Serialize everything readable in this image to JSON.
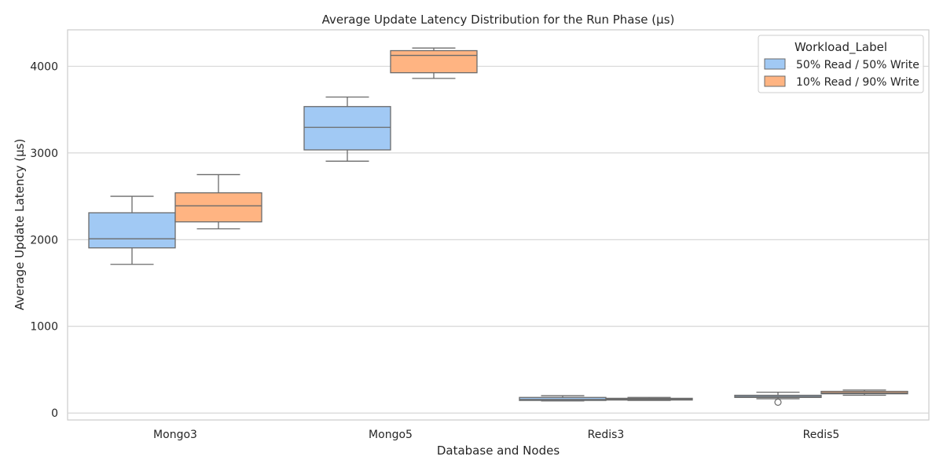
{
  "chart_data": {
    "type": "box",
    "title": "Average Update Latency Distribution for the Run Phase (µs)",
    "xlabel": "Database and Nodes",
    "ylabel": "Average Update Latency (µs)",
    "categories": [
      "Mongo3",
      "Mongo5",
      "Redis3",
      "Redis5"
    ],
    "ylim": [
      -80,
      4420
    ],
    "yticks": [
      0,
      1000,
      2000,
      3000,
      4000
    ],
    "grid": true,
    "legend": {
      "title": "Workload_Label",
      "placement": "top-right"
    },
    "series": [
      {
        "name": "50% Read / 50% Write",
        "color": "#a1c9f4",
        "boxes": [
          {
            "category": "Mongo3",
            "whisker_low": 1715,
            "q1": 1905,
            "median": 2010,
            "q3": 2310,
            "whisker_high": 2500,
            "outliers": []
          },
          {
            "category": "Mongo5",
            "whisker_low": 2905,
            "q1": 3035,
            "median": 3295,
            "q3": 3535,
            "whisker_high": 3645,
            "outliers": []
          },
          {
            "category": "Redis3",
            "whisker_low": 140,
            "q1": 145,
            "median": 158,
            "q3": 180,
            "whisker_high": 200,
            "outliers": []
          },
          {
            "category": "Redis5",
            "whisker_low": 165,
            "q1": 180,
            "median": 190,
            "q3": 205,
            "whisker_high": 240,
            "outliers": [
              125
            ]
          }
        ]
      },
      {
        "name": "10% Read / 90% Write",
        "color": "#ffb482",
        "boxes": [
          {
            "category": "Mongo3",
            "whisker_low": 2125,
            "q1": 2205,
            "median": 2390,
            "q3": 2540,
            "whisker_high": 2750,
            "outliers": []
          },
          {
            "category": "Mongo5",
            "whisker_low": 3860,
            "q1": 3925,
            "median": 4125,
            "q3": 4180,
            "whisker_high": 4210,
            "outliers": []
          },
          {
            "category": "Redis3",
            "whisker_low": 145,
            "q1": 150,
            "median": 160,
            "q3": 170,
            "whisker_high": 180,
            "outliers": []
          },
          {
            "category": "Redis5",
            "whisker_low": 205,
            "q1": 222,
            "median": 232,
            "q3": 250,
            "whisker_high": 265,
            "outliers": []
          }
        ]
      }
    ]
  }
}
